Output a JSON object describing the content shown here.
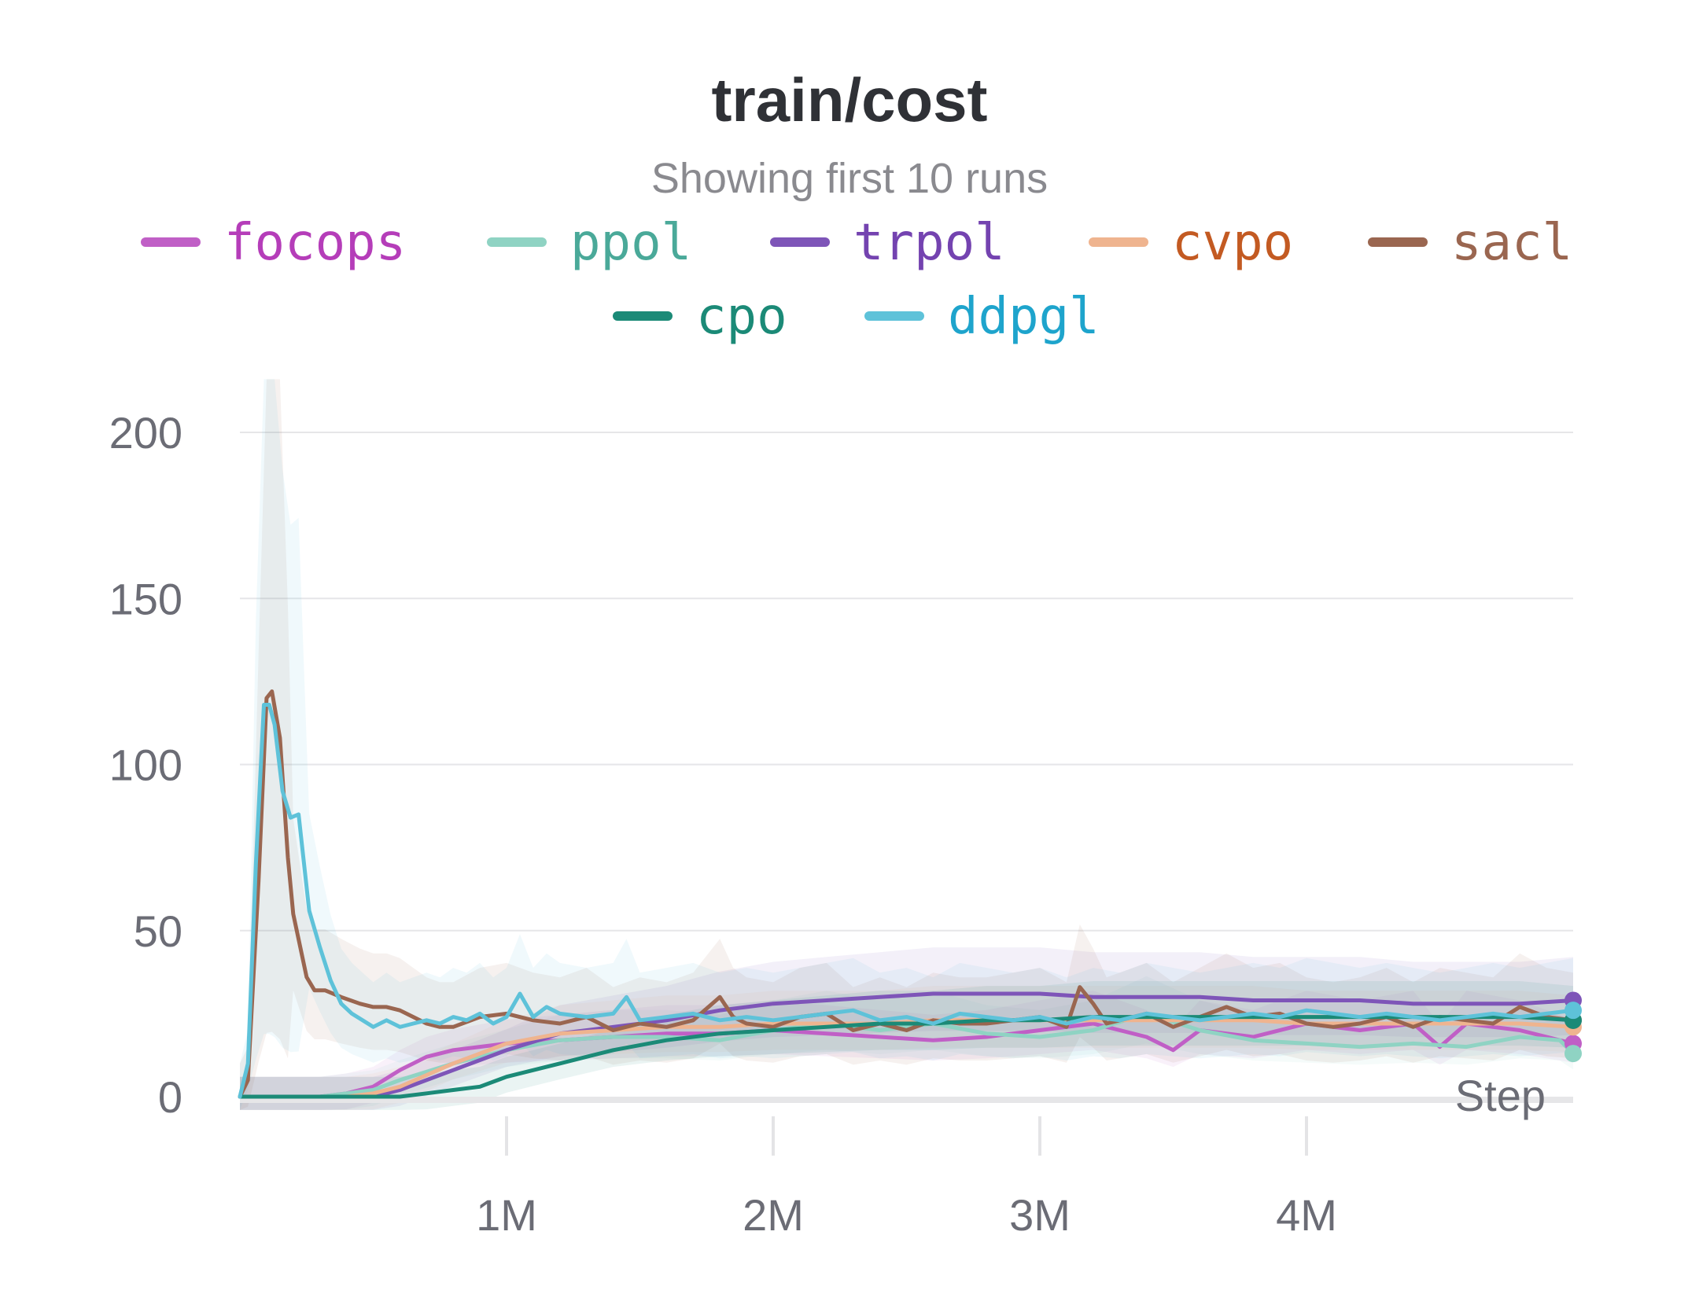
{
  "chart_data": {
    "type": "line",
    "title": "train/cost",
    "subtitle": "Showing first 10 runs",
    "xlabel": "Step",
    "ylabel": "",
    "xlim": [
      0,
      5000000
    ],
    "ylim": [
      0,
      200
    ],
    "x_ticks": [
      1000000,
      2000000,
      3000000,
      4000000
    ],
    "x_tick_labels": [
      "1M",
      "2M",
      "3M",
      "4M"
    ],
    "y_ticks": [
      0,
      50,
      100,
      150,
      200
    ],
    "y_tick_labels": [
      "0",
      "50",
      "100",
      "150",
      "200"
    ],
    "grid": true,
    "legend_position": "top",
    "series": [
      {
        "name": "focops",
        "color": "#c05fc6",
        "text_color": "#b53db9",
        "x": [
          0,
          100000,
          200000,
          300000,
          400000,
          500000,
          600000,
          700000,
          800000,
          900000,
          1000000,
          1200000,
          1400000,
          1600000,
          1800000,
          2000000,
          2200000,
          2400000,
          2600000,
          2800000,
          3000000,
          3200000,
          3400000,
          3500000,
          3600000,
          3800000,
          4000000,
          4200000,
          4400000,
          4500000,
          4600000,
          4800000,
          5000000
        ],
        "y": [
          0,
          0,
          0,
          0,
          1,
          3,
          8,
          12,
          14,
          15,
          16,
          17,
          18,
          19,
          19,
          20,
          19,
          18,
          17,
          18,
          20,
          22,
          18,
          14,
          20,
          18,
          22,
          20,
          22,
          15,
          22,
          20,
          16
        ]
      },
      {
        "name": "ppol",
        "color": "#8fd3c3",
        "text_color": "#4aa999",
        "x": [
          0,
          100000,
          200000,
          300000,
          400000,
          500000,
          600000,
          800000,
          1000000,
          1200000,
          1400000,
          1600000,
          1800000,
          2000000,
          2200000,
          2400000,
          2600000,
          2800000,
          3000000,
          3200000,
          3400000,
          3600000,
          3800000,
          4000000,
          4200000,
          4400000,
          4600000,
          4800000,
          4950000,
          5000000
        ],
        "y": [
          0,
          0,
          0,
          0,
          1,
          2,
          5,
          10,
          14,
          17,
          18,
          18,
          17,
          20,
          22,
          20,
          22,
          19,
          18,
          20,
          25,
          20,
          17,
          16,
          15,
          16,
          15,
          18,
          17,
          13
        ]
      },
      {
        "name": "trpol",
        "color": "#7e55b8",
        "text_color": "#7443b0",
        "x": [
          0,
          100000,
          200000,
          300000,
          400000,
          500000,
          600000,
          800000,
          1000000,
          1200000,
          1400000,
          1600000,
          1800000,
          2000000,
          2200000,
          2400000,
          2600000,
          2800000,
          3000000,
          3200000,
          3400000,
          3600000,
          3800000,
          4000000,
          4200000,
          4400000,
          4600000,
          4800000,
          5000000
        ],
        "y": [
          0,
          0,
          0,
          0,
          0,
          0,
          2,
          8,
          14,
          19,
          21,
          23,
          26,
          28,
          29,
          30,
          31,
          31,
          31,
          30,
          30,
          30,
          29,
          29,
          29,
          28,
          28,
          28,
          29
        ]
      },
      {
        "name": "cvpo",
        "color": "#efb48f",
        "text_color": "#c35a22",
        "x": [
          0,
          100000,
          200000,
          300000,
          400000,
          500000,
          600000,
          800000,
          1000000,
          1200000,
          1400000,
          1600000,
          1800000,
          2000000,
          2200000,
          2400000,
          2600000,
          2800000,
          3000000,
          3200000,
          3400000,
          3600000,
          3800000,
          4000000,
          4200000,
          4400000,
          4600000,
          4800000,
          5000000
        ],
        "y": [
          0,
          0,
          0,
          0,
          0,
          1,
          3,
          10,
          16,
          19,
          20,
          21,
          21,
          22,
          22,
          22,
          23,
          23,
          23,
          23,
          23,
          23,
          23,
          22,
          22,
          22,
          22,
          22,
          21
        ]
      },
      {
        "name": "sacl",
        "color": "#9a6650",
        "text_color": "#9a6650",
        "x": [
          0,
          30000,
          70000,
          100000,
          120000,
          150000,
          180000,
          200000,
          250000,
          280000,
          320000,
          380000,
          450000,
          500000,
          550000,
          600000,
          650000,
          700000,
          750000,
          800000,
          900000,
          1000000,
          1100000,
          1200000,
          1300000,
          1400000,
          1500000,
          1600000,
          1700000,
          1800000,
          1850000,
          1900000,
          2000000,
          2100000,
          2200000,
          2300000,
          2400000,
          2500000,
          2600000,
          2700000,
          2800000,
          2900000,
          3000000,
          3100000,
          3150000,
          3200000,
          3250000,
          3300000,
          3400000,
          3500000,
          3600000,
          3700000,
          3800000,
          3900000,
          4000000,
          4100000,
          4200000,
          4300000,
          4400000,
          4500000,
          4600000,
          4700000,
          4800000,
          4900000,
          5000000
        ],
        "y": [
          0,
          5,
          65,
          120,
          122,
          108,
          72,
          55,
          36,
          32,
          32,
          30,
          28,
          27,
          27,
          26,
          24,
          22,
          21,
          21,
          24,
          25,
          23,
          22,
          24,
          20,
          22,
          21,
          23,
          30,
          24,
          22,
          21,
          24,
          25,
          20,
          22,
          20,
          23,
          22,
          22,
          23,
          24,
          21,
          33,
          28,
          22,
          23,
          25,
          21,
          24,
          27,
          24,
          25,
          22,
          21,
          22,
          24,
          21,
          24,
          23,
          22,
          27,
          24,
          23
        ]
      },
      {
        "name": "cpo",
        "color": "#1b8a77",
        "text_color": "#1b8a77",
        "x": [
          0,
          100000,
          200000,
          300000,
          400000,
          500000,
          600000,
          700000,
          800000,
          900000,
          1000000,
          1200000,
          1400000,
          1600000,
          1800000,
          2000000,
          2200000,
          2400000,
          2600000,
          2800000,
          3000000,
          3200000,
          3400000,
          3600000,
          3800000,
          4000000,
          4200000,
          4400000,
          4600000,
          4800000,
          5000000
        ],
        "y": [
          0,
          0,
          0,
          0,
          0,
          0,
          0,
          1,
          2,
          3,
          6,
          10,
          14,
          17,
          19,
          20,
          21,
          22,
          22,
          23,
          23,
          24,
          24,
          24,
          24,
          24,
          24,
          24,
          24,
          24,
          23
        ]
      },
      {
        "name": "ddpgl",
        "color": "#5ec2d9",
        "text_color": "#1ea4cc",
        "x": [
          0,
          30000,
          60000,
          90000,
          110000,
          130000,
          160000,
          190000,
          220000,
          260000,
          300000,
          340000,
          380000,
          420000,
          460000,
          500000,
          550000,
          600000,
          650000,
          700000,
          750000,
          800000,
          850000,
          900000,
          950000,
          1000000,
          1050000,
          1100000,
          1150000,
          1200000,
          1300000,
          1400000,
          1450000,
          1500000,
          1600000,
          1700000,
          1800000,
          1900000,
          2000000,
          2100000,
          2200000,
          2300000,
          2400000,
          2500000,
          2600000,
          2700000,
          2800000,
          2900000,
          3000000,
          3100000,
          3200000,
          3300000,
          3400000,
          3500000,
          3600000,
          3700000,
          3800000,
          3900000,
          4000000,
          4100000,
          4200000,
          4300000,
          4400000,
          4500000,
          4600000,
          4700000,
          4800000,
          4900000,
          5000000
        ],
        "y": [
          0,
          10,
          70,
          118,
          118,
          112,
          92,
          84,
          85,
          56,
          45,
          35,
          28,
          25,
          23,
          21,
          23,
          21,
          22,
          23,
          22,
          24,
          23,
          25,
          22,
          24,
          31,
          24,
          27,
          25,
          24,
          25,
          30,
          23,
          24,
          25,
          23,
          24,
          23,
          24,
          25,
          26,
          23,
          24,
          22,
          25,
          24,
          23,
          24,
          22,
          24,
          23,
          25,
          24,
          23,
          24,
          25,
          24,
          26,
          25,
          24,
          25,
          24,
          23,
          24,
          25,
          24,
          25,
          26
        ]
      }
    ]
  }
}
